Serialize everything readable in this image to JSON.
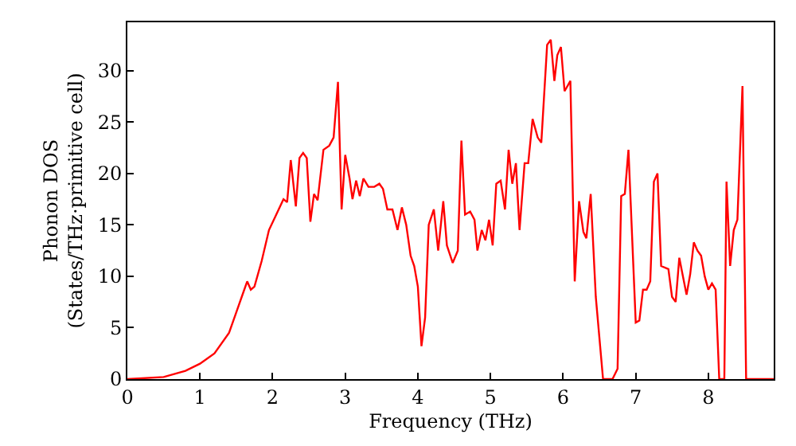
{
  "chart_data": {
    "type": "line",
    "xlabel": "Frequency (THz)",
    "ylabel": "Phonon DOS\n(States/THz·primitive cell)",
    "xlim": [
      0,
      8.9
    ],
    "ylim": [
      0,
      34.7
    ],
    "xticks": [
      0,
      1,
      2,
      3,
      4,
      5,
      6,
      7,
      8
    ],
    "yticks": [
      0,
      5,
      10,
      15,
      20,
      25,
      30
    ],
    "marker": "none",
    "line_style": "solid",
    "series": [
      {
        "color": "#ff0000",
        "x": [
          0,
          0.5,
          0.8,
          1.0,
          1.2,
          1.4,
          1.5,
          1.6,
          1.65,
          1.7,
          1.75,
          1.85,
          1.95,
          2.05,
          2.15,
          2.2,
          2.25,
          2.32,
          2.37,
          2.42,
          2.47,
          2.52,
          2.57,
          2.62,
          2.7,
          2.78,
          2.84,
          2.9,
          2.95,
          3.0,
          3.06,
          3.1,
          3.15,
          3.2,
          3.25,
          3.32,
          3.4,
          3.47,
          3.52,
          3.58,
          3.65,
          3.72,
          3.78,
          3.84,
          3.9,
          3.95,
          4.0,
          4.05,
          4.1,
          4.15,
          4.22,
          4.28,
          4.35,
          4.4,
          4.48,
          4.55,
          4.6,
          4.65,
          4.72,
          4.78,
          4.82,
          4.88,
          4.93,
          4.98,
          5.03,
          5.08,
          5.14,
          5.2,
          5.25,
          5.3,
          5.35,
          5.4,
          5.47,
          5.52,
          5.58,
          5.65,
          5.7,
          5.78,
          5.83,
          5.88,
          5.92,
          5.97,
          6.02,
          6.1,
          6.16,
          6.22,
          6.28,
          6.32,
          6.38,
          6.45,
          6.55,
          6.68,
          6.75,
          6.8,
          6.85,
          6.9,
          7.0,
          7.05,
          7.1,
          7.15,
          7.2,
          7.25,
          7.3,
          7.35,
          7.45,
          7.5,
          7.55,
          7.6,
          7.65,
          7.7,
          7.75,
          7.8,
          7.85,
          7.9,
          7.95,
          8.0,
          8.05,
          8.1,
          8.15,
          8.22,
          8.25,
          8.3,
          8.35,
          8.4,
          8.47,
          8.52,
          8.9
        ],
        "values": [
          0,
          0.2,
          0.8,
          1.5,
          2.5,
          4.5,
          6.5,
          8.5,
          9.5,
          8.7,
          9,
          11.5,
          14.5,
          16,
          17.5,
          17.2,
          21.3,
          16.8,
          21.5,
          22,
          21.5,
          15.3,
          18,
          17.4,
          22.3,
          22.7,
          23.5,
          28.9,
          16.5,
          21.8,
          19.5,
          17.5,
          19.3,
          17.8,
          19.5,
          18.7,
          18.7,
          19,
          18.5,
          16.5,
          16.5,
          14.5,
          16.7,
          15,
          12,
          11,
          9,
          3.2,
          6,
          15,
          16.5,
          12.5,
          17.3,
          13,
          11.3,
          12.5,
          23.2,
          16,
          16.3,
          15.5,
          12.5,
          14.5,
          13.5,
          15.5,
          13,
          19,
          19.3,
          16.5,
          22.3,
          19,
          21,
          14.5,
          21,
          21,
          25.3,
          23.5,
          23,
          32.5,
          33,
          29,
          31.5,
          32.3,
          28,
          29,
          9.5,
          17.3,
          14.3,
          13.7,
          18,
          8,
          0,
          0,
          1,
          17.8,
          18,
          22.3,
          5.5,
          5.7,
          8.7,
          8.7,
          9.5,
          19.2,
          20,
          11,
          10.7,
          8,
          7.5,
          11.8,
          10,
          8.2,
          10.2,
          13.3,
          12.5,
          12,
          10,
          8.7,
          9.3,
          8.7,
          0,
          0,
          19.2,
          11,
          14.5,
          15.5,
          28.5,
          0,
          0
        ]
      }
    ]
  }
}
